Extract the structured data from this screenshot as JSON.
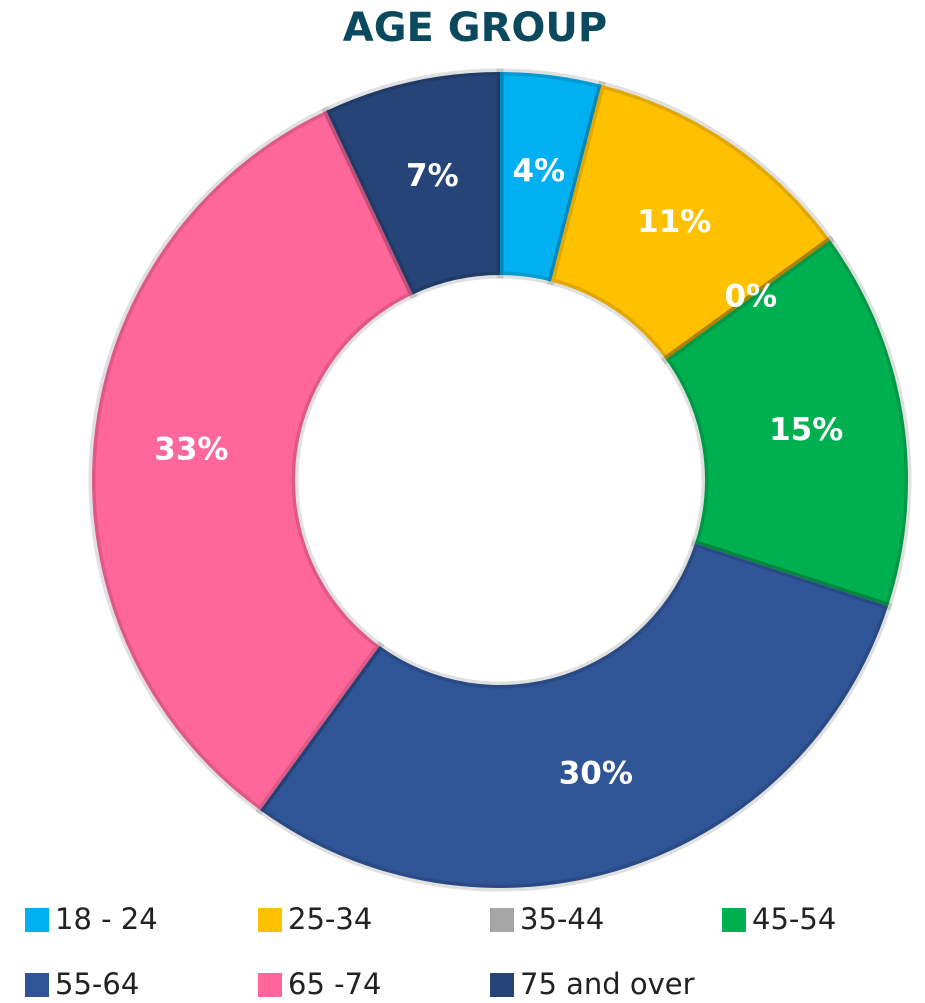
{
  "chart_data": {
    "type": "donut",
    "title": "AGE GROUP",
    "categories": [
      "18 - 24",
      "25-34",
      "35-44",
      "45-54",
      "55-64",
      "65 -74",
      "75 and over"
    ],
    "values": [
      4,
      11,
      0,
      15,
      30,
      33,
      7
    ],
    "value_labels": [
      "4%",
      "11%",
      "0%",
      "15%",
      "30%",
      "33%",
      "7%"
    ],
    "colors": [
      "#00b0f0",
      "#ffc000",
      "#a5a5a5",
      "#00b050",
      "#2f5597",
      "#ff6699",
      "#264478"
    ],
    "legend": "bottom"
  }
}
